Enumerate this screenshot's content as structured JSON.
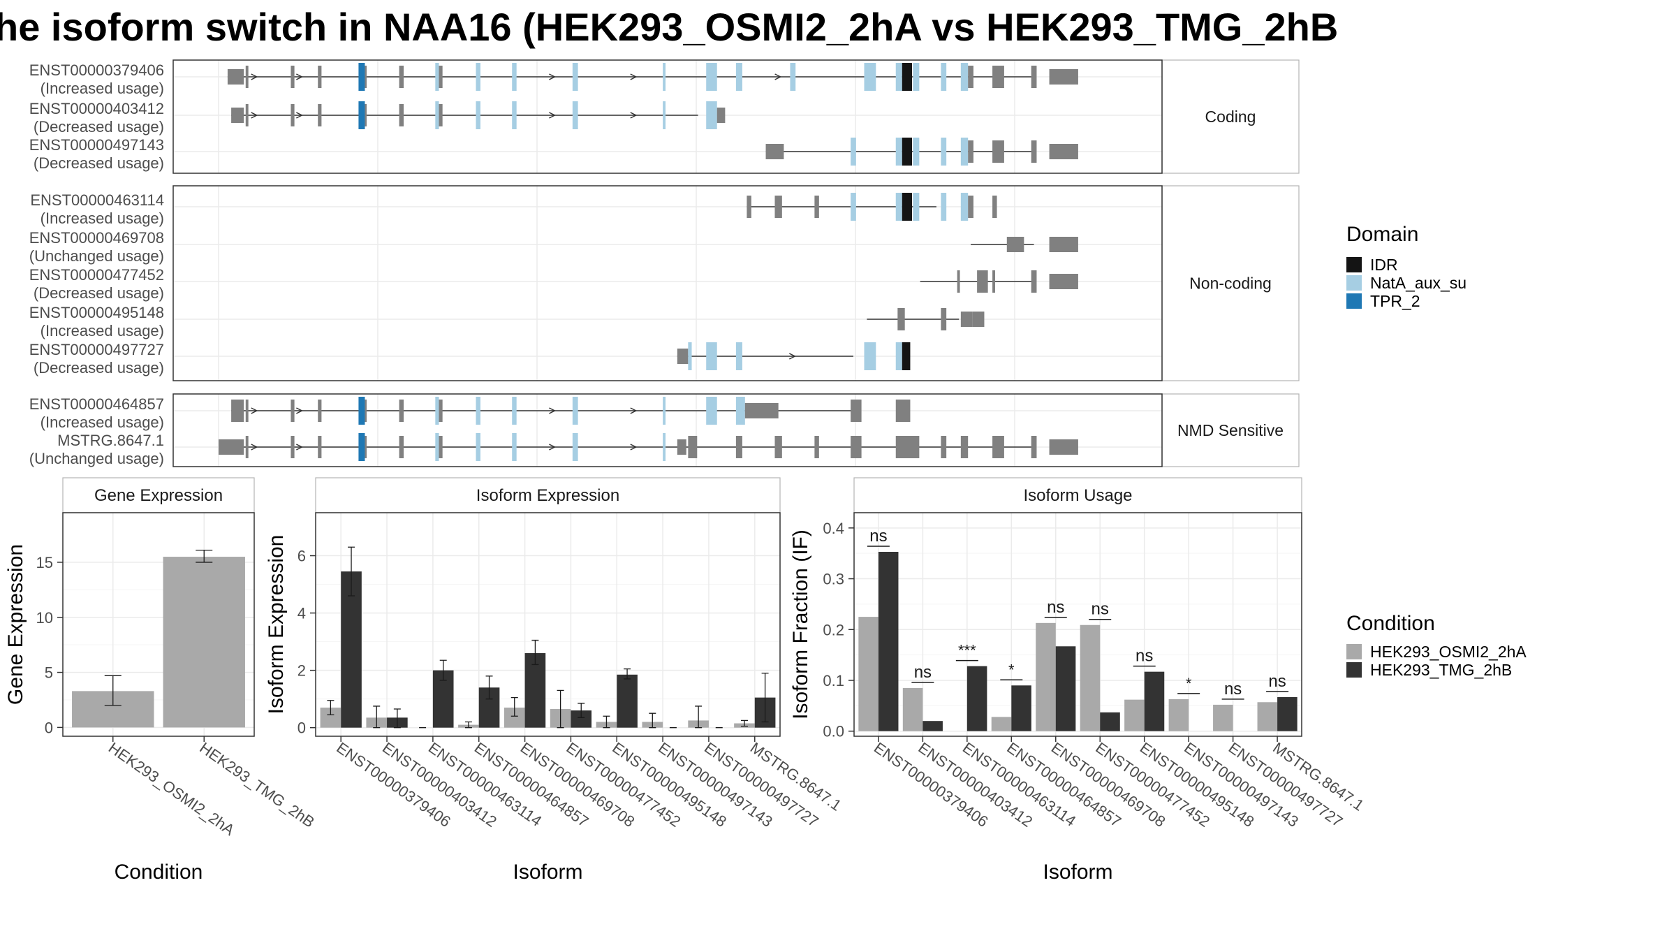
{
  "title": "he isoform switch in NAA16 (HEK293_OSMI2_2hA vs HEK293_TMG_2hB",
  "colors": {
    "IDR": "#141414",
    "NatA_aux_su": "#a6cee3",
    "TPR_2": "#1f78b4",
    "exon": "#808080",
    "cond1": "#a9a9a9",
    "cond2": "#333333"
  },
  "structure": {
    "xrange": [
      0,
      1000
    ],
    "domain_legend": {
      "title": "Domain",
      "items": [
        "IDR",
        "NatA_aux_su",
        "TPR_2"
      ]
    },
    "panels": [
      {
        "label": "Coding",
        "transcripts": [
          {
            "id": "ENST00000379406",
            "usage": "(Increased usage)",
            "tx": [
              10,
              903
            ]
          },
          {
            "id": "ENST00000403412",
            "usage": "(Decreased usage)",
            "tx": [
              14,
              531
            ]
          },
          {
            "id": "ENST00000497143",
            "usage": "(Decreased usage)",
            "tx": [
              606,
              903
            ]
          }
        ]
      },
      {
        "label": "Non-coding",
        "transcripts": [
          {
            "id": "ENST00000463114",
            "usage": "(Increased usage)",
            "tx": [
              585,
              795
            ]
          },
          {
            "id": "ENST00000469708",
            "usage": "(Unchanged usage)",
            "tx": [
              833,
              903
            ]
          },
          {
            "id": "ENST00000477452",
            "usage": "(Decreased usage)",
            "tx": [
              777,
              903
            ]
          },
          {
            "id": "ENST00000495148",
            "usage": "(Increased usage)",
            "tx": [
              718,
              820
            ]
          },
          {
            "id": "ENST00000497727",
            "usage": "(Decreased usage)",
            "tx": [
              508,
              703
            ]
          }
        ]
      },
      {
        "label": "NMD Sensitive",
        "transcripts": [
          {
            "id": "ENST00000464857",
            "usage": "(Increased usage)",
            "tx": [
              14,
              703
            ]
          },
          {
            "id": "MSTRG.8647.1",
            "usage": "(Unchanged usage)",
            "tx": [
              0,
              903
            ]
          }
        ]
      }
    ]
  },
  "chart_data": [
    {
      "type": "bar",
      "title": "Gene Expression",
      "xlabel": "Condition",
      "ylabel": "Gene Expression",
      "categories": [
        "HEK293_OSMI2_2hA",
        "HEK293_TMG_2hB"
      ],
      "values": [
        3.3,
        15.5
      ],
      "error": [
        [
          2.0,
          4.7
        ],
        [
          15.0,
          16.1
        ]
      ],
      "ylim": [
        -0.8,
        19.5
      ],
      "yticks": [
        0,
        5,
        10,
        15
      ]
    },
    {
      "type": "bar",
      "title": "Isoform Expression",
      "xlabel": "Isoform",
      "ylabel": "Isoform Expression",
      "categories": [
        "ENST00000379406",
        "ENST00000403412",
        "ENST00000463114",
        "ENST00000464857",
        "ENST00000469708",
        "ENST00000477452",
        "ENST00000495148",
        "ENST00000497143",
        "ENST00000497727",
        "MSTRG.8647.1"
      ],
      "series": [
        {
          "name": "HEK293_OSMI2_2hA",
          "values": [
            0.7,
            0.35,
            0.0,
            0.1,
            0.7,
            0.65,
            0.2,
            0.2,
            0.25,
            0.15
          ],
          "error": [
            [
              0.45,
              0.95
            ],
            [
              0.0,
              0.75
            ],
            [
              0.0,
              0.0
            ],
            [
              0.0,
              0.2
            ],
            [
              0.4,
              1.05
            ],
            [
              0.0,
              1.3
            ],
            [
              0.0,
              0.4
            ],
            [
              0.0,
              0.5
            ],
            [
              0.0,
              0.75
            ],
            [
              0.05,
              0.25
            ]
          ]
        },
        {
          "name": "HEK293_TMG_2hB",
          "values": [
            5.45,
            0.35,
            2.0,
            1.4,
            2.6,
            0.6,
            1.85,
            0.0,
            0.0,
            1.05
          ],
          "error": [
            [
              4.6,
              6.3
            ],
            [
              0.0,
              0.65
            ],
            [
              1.65,
              2.35
            ],
            [
              1.0,
              1.8
            ],
            [
              2.2,
              3.05
            ],
            [
              0.35,
              0.85
            ],
            [
              1.7,
              2.05
            ],
            [
              0.0,
              0.0
            ],
            [
              0.0,
              0.0
            ],
            [
              0.2,
              1.9
            ]
          ]
        }
      ],
      "ylim": [
        -0.3,
        7.5
      ],
      "yticks": [
        0,
        2,
        4,
        6
      ]
    },
    {
      "type": "bar",
      "title": "Isoform Usage",
      "xlabel": "Isoform",
      "ylabel": "Isoform Fraction (IF)",
      "categories": [
        "ENST00000379406",
        "ENST00000403412",
        "ENST00000463114",
        "ENST00000464857",
        "ENST00000469708",
        "ENST00000477452",
        "ENST00000495148",
        "ENST00000497143",
        "ENST00000497727",
        "MSTRG.8647.1"
      ],
      "series": [
        {
          "name": "HEK293_OSMI2_2hA",
          "values": [
            0.225,
            0.085,
            0.0,
            0.028,
            0.213,
            0.209,
            0.062,
            0.063,
            0.052,
            0.057
          ]
        },
        {
          "name": "HEK293_TMG_2hB",
          "values": [
            0.353,
            0.02,
            0.128,
            0.09,
            0.167,
            0.037,
            0.117,
            0.0,
            0.0,
            0.067
          ]
        }
      ],
      "significance": [
        "ns",
        "ns",
        "***",
        "*",
        "ns",
        "ns",
        "ns",
        "*",
        "ns",
        "ns"
      ],
      "ylim": [
        -0.01,
        0.43
      ],
      "yticks": [
        0.0,
        0.1,
        0.2,
        0.3,
        0.4
      ],
      "ytick_labels": [
        "0.0",
        "0.1",
        "0.2",
        "0.3",
        "0.4"
      ]
    }
  ],
  "condition_legend": {
    "title": "Condition",
    "items": [
      "HEK293_OSMI2_2hA",
      "HEK293_TMG_2hB"
    ]
  }
}
